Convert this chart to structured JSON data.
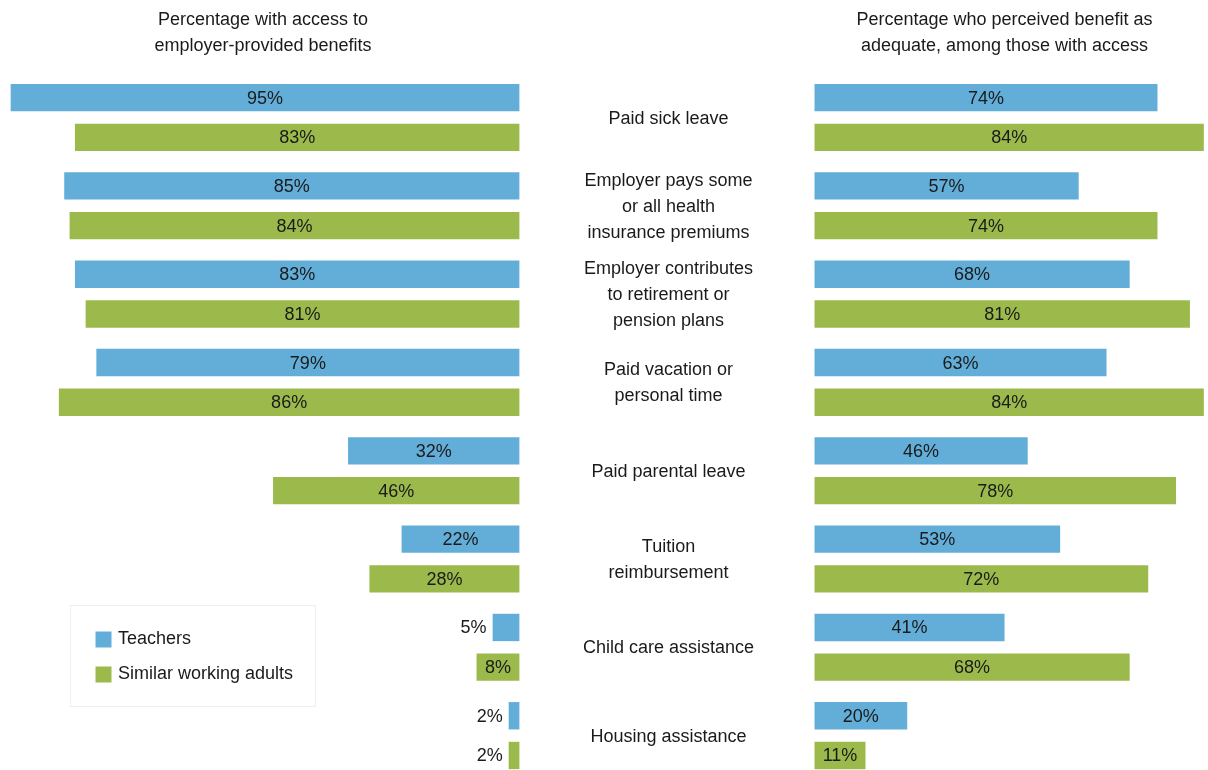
{
  "chart_data": [
    {
      "type": "bar",
      "orientation": "horizontal",
      "title": "Percentage with access to\nemployer-provided benefits",
      "categories": [
        "Paid sick leave",
        "Employer pays some\nor all health\ninsurance premiums",
        "Employer contributes\nto retirement or\npension plans",
        "Paid vacation or\npersonal time",
        "Paid parental leave",
        "Tuition\nreimbursement",
        "Child care assistance",
        "Housing assistance"
      ],
      "series": [
        {
          "name": "Teachers",
          "color": "#62aed9",
          "values": [
            95,
            85,
            83,
            79,
            32,
            22,
            5,
            2
          ],
          "value_labels": [
            "95%",
            "85%",
            "83%",
            "79%",
            "32%",
            "22%",
            "5%",
            "2%"
          ]
        },
        {
          "name": "Similar working adults",
          "color": "#9cba4c",
          "values": [
            83,
            84,
            81,
            86,
            46,
            28,
            8,
            2
          ],
          "value_labels": [
            "83%",
            "84%",
            "81%",
            "86%",
            "46%",
            "28%",
            "8%",
            "2%"
          ]
        }
      ],
      "legend": "bottom left"
    },
    {
      "type": "bar",
      "orientation": "horizontal",
      "title": "Percentage who perceived benefit as\nadequate, among those with access",
      "series": [
        {
          "color": "#62aed9",
          "values": [
            74,
            57,
            68,
            63,
            46,
            53,
            41,
            20
          ],
          "value_labels": [
            "74%",
            "57%",
            "68%",
            "63%",
            "46%",
            "53%",
            "41%",
            "20%"
          ]
        },
        {
          "color": "#9cba4c",
          "values": [
            84,
            74,
            81,
            84,
            78,
            72,
            68,
            11
          ],
          "value_labels": [
            "84%",
            "74%",
            "81%",
            "84%",
            "78%",
            "72%",
            "68%",
            "11%"
          ]
        }
      ]
    }
  ]
}
